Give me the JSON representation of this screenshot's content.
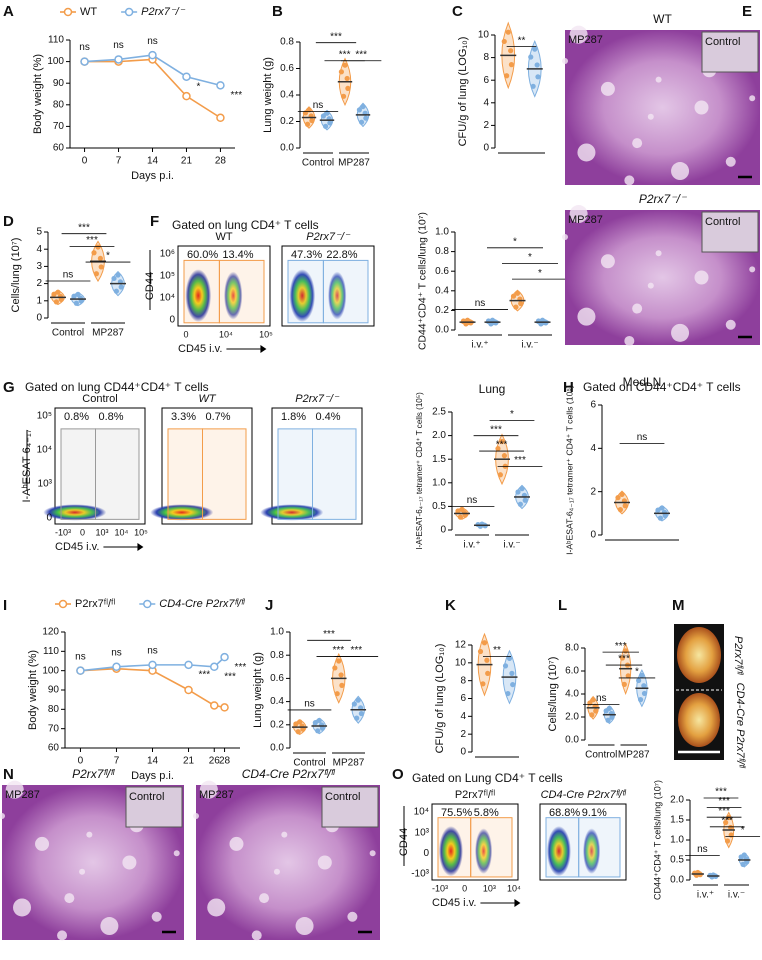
{
  "panels": [
    "A",
    "B",
    "C",
    "D",
    "E",
    "F",
    "G",
    "H",
    "I",
    "J",
    "K",
    "L",
    "M",
    "N",
    "O"
  ],
  "headings": [
    "Gated on lung CD4⁺ T cells",
    "Gated on lung CD44⁺CD4⁺ T cells",
    "Gated on CD44⁺CD4⁺ T cells",
    "Gated on Lung CD4⁺ T cells"
  ],
  "chart_data": [
    {
      "type": "line",
      "ylabel": "Body weight (%)",
      "xlabel": "Days p.i.",
      "x": [
        0,
        7,
        14,
        21,
        28
      ],
      "xlim": [
        -3,
        31
      ],
      "xticks": [
        0,
        7,
        14,
        21,
        28
      ],
      "ylim": [
        60,
        110
      ],
      "yticks": [
        60,
        70,
        80,
        90,
        100,
        110
      ],
      "series": [
        {
          "name": "WT",
          "color": "#f39c4a",
          "values": [
            100,
            100,
            101,
            84,
            74
          ]
        },
        {
          "name": "P2rx7⁻/⁻",
          "color": "#7fb0e0",
          "values": [
            100,
            101,
            103,
            93,
            89
          ]
        }
      ],
      "annotations": [
        "ns",
        "ns",
        "ns",
        "*",
        "***"
      ]
    },
    {
      "type": "dot",
      "ylabel": "Lung weight (g)",
      "categories": [
        "Control",
        "MP287"
      ],
      "ylim": [
        0,
        0.8
      ],
      "yticks": [
        {
          "value": 0,
          "label": "0.0"
        },
        0.2,
        0.4,
        0.6,
        0.8
      ],
      "series": [
        {
          "color": "#f39c4a",
          "values": [
            0.23,
            0.5
          ]
        },
        {
          "color": "#7fb0e0",
          "values": [
            0.21,
            0.25
          ]
        }
      ],
      "annotations": [
        "ns",
        "***",
        "***",
        "***"
      ]
    },
    {
      "type": "dot",
      "ylabel": "CFU/g of lung (LOG₁₀)",
      "categories": [
        null
      ],
      "ylim": [
        0,
        10
      ],
      "yticks": [
        0,
        2,
        4,
        6,
        8,
        10
      ],
      "series": [
        {
          "color": "#f39c4a",
          "values": [
            8.2
          ]
        },
        {
          "color": "#7fb0e0",
          "values": [
            7.0
          ]
        }
      ],
      "annotations": [
        "**"
      ]
    },
    {
      "type": "dot",
      "ylabel": "Cells/lung (10⁷)",
      "categories": [
        "Control",
        "MP287"
      ],
      "ylim": [
        0,
        5
      ],
      "yticks": [
        0,
        1,
        2,
        3,
        4,
        5
      ],
      "series": [
        {
          "color": "#f39c4a",
          "values": [
            1.2,
            3.3
          ]
        },
        {
          "color": "#7fb0e0",
          "values": [
            1.1,
            2.0
          ]
        }
      ],
      "annotations": [
        "***",
        "***",
        "ns",
        "*"
      ]
    },
    {
      "type": "dot",
      "ylabel": "CD44⁺CD4⁺ T cells/lung (10⁷)",
      "categories": [
        "i.v.⁺",
        "i.v.⁻"
      ],
      "ylim": [
        0,
        1
      ],
      "yticks": [
        {
          "value": 0,
          "label": "0.0"
        },
        0.2,
        0.4,
        0.6,
        0.8,
        {
          "value": 1,
          "label": "1.0"
        }
      ],
      "series": [
        {
          "color": "#f39c4a",
          "values": [
            0.08,
            0.3
          ]
        },
        {
          "color": "#7fb0e0",
          "values": [
            0.08,
            0.08
          ]
        }
      ],
      "annotations": [
        "*",
        "*",
        "*",
        "ns"
      ]
    },
    {
      "type": "dot",
      "title": "Lung",
      "ylabel": "I-AᵇESAT-6₄₋₁₇ tetramer⁺ CD4⁺ T cells (10⁵)",
      "categories": [
        "i.v.⁺",
        "i.v.⁻"
      ],
      "ylim": [
        0,
        2.5
      ],
      "yticks": [
        0,
        0.5,
        {
          "value": 1,
          "label": "1.0"
        },
        1.5,
        {
          "value": 2,
          "label": "2.0"
        },
        2.5
      ],
      "series": [
        {
          "color": "#f39c4a",
          "values": [
            0.35,
            1.5
          ]
        },
        {
          "color": "#7fb0e0",
          "values": [
            0.1,
            0.7
          ]
        }
      ],
      "annotations": [
        "*",
        "***",
        "***",
        "***",
        "ns"
      ]
    },
    {
      "type": "dot",
      "title": "MedLN",
      "ylabel": "I-AᵇESAT-6₄₋₁₇ tetramer⁺ CD4⁺ T cells (10⁵)",
      "categories": [
        null
      ],
      "ylim": [
        0,
        6
      ],
      "yticks": [
        0,
        2,
        4,
        6
      ],
      "series": [
        {
          "color": "#f39c4a",
          "values": [
            1.5
          ]
        },
        {
          "color": "#7fb0e0",
          "values": [
            1.0
          ]
        }
      ],
      "annotations": [
        "ns"
      ]
    },
    {
      "type": "line",
      "ylabel": "Body weight (%)",
      "xlabel": "Days p.i.",
      "x": [
        0,
        7,
        14,
        21,
        26,
        28
      ],
      "xlim": [
        -3,
        31
      ],
      "xticks": [
        0,
        7,
        14,
        21,
        26,
        28
      ],
      "ylim": [
        60,
        120
      ],
      "yticks": [
        60,
        70,
        80,
        90,
        100,
        110,
        120
      ],
      "series": [
        {
          "name": "P2rx7ᶠˡ/ᶠˡ",
          "color": "#f39c4a",
          "values": [
            100,
            101,
            100,
            90,
            82,
            81
          ]
        },
        {
          "name": "CD4-Cre P2rx7ᶠˡ/ᶠˡ",
          "color": "#7fb0e0",
          "values": [
            100,
            102,
            103,
            103,
            102,
            107
          ]
        }
      ],
      "annotations": [
        "ns",
        "ns",
        "ns",
        "***",
        "***",
        "***"
      ]
    },
    {
      "type": "dot",
      "ylabel": "Lung weight (g)",
      "categories": [
        "Control",
        "MP287"
      ],
      "ylim": [
        0,
        1
      ],
      "yticks": [
        {
          "value": 0,
          "label": "0.0"
        },
        0.2,
        0.4,
        0.6,
        0.8,
        {
          "value": 1,
          "label": "1.0"
        }
      ],
      "series": [
        {
          "color": "#f39c4a",
          "values": [
            0.18,
            0.6
          ]
        },
        {
          "color": "#7fb0e0",
          "values": [
            0.19,
            0.33
          ]
        }
      ],
      "annotations": [
        "***",
        "***",
        "***",
        "ns"
      ]
    },
    {
      "type": "dot",
      "ylabel": "CFU/g of lung (LOG₁₀)",
      "categories": [
        null
      ],
      "ylim": [
        0,
        12
      ],
      "yticks": [
        0,
        2,
        4,
        6,
        8,
        10,
        12
      ],
      "series": [
        {
          "color": "#f39c4a",
          "values": [
            9.8
          ]
        },
        {
          "color": "#7fb0e0",
          "values": [
            8.4
          ]
        }
      ],
      "annotations": [
        "**"
      ]
    },
    {
      "type": "dot",
      "ylabel": "Cells/lung (10⁷)",
      "categories": [
        "Control",
        "MP287"
      ],
      "ylim": [
        0,
        8
      ],
      "yticks": [
        {
          "value": 0,
          "label": "0.0"
        },
        {
          "value": 2,
          "label": "2.0"
        },
        {
          "value": 4,
          "label": "4.0"
        },
        {
          "value": 6,
          "label": "6.0"
        },
        {
          "value": 8,
          "label": "8.0"
        }
      ],
      "series": [
        {
          "color": "#f39c4a",
          "values": [
            2.8,
            6.2
          ]
        },
        {
          "color": "#7fb0e0",
          "values": [
            2.2,
            4.5
          ]
        }
      ],
      "annotations": [
        "***",
        "***",
        "*",
        "ns"
      ]
    },
    {
      "type": "dot",
      "ylabel": "CD44⁺CD4⁺ T cells/lung (10⁷)",
      "categories": [
        "i.v.⁺",
        "i.v.⁻"
      ],
      "ylim": [
        0,
        2
      ],
      "yticks": [
        {
          "value": 0,
          "label": "0.0"
        },
        0.5,
        {
          "value": 1,
          "label": "1.0"
        },
        1.5,
        {
          "value": 2,
          "label": "2.0"
        }
      ],
      "series": [
        {
          "color": "#f39c4a",
          "values": [
            0.15,
            1.25
          ]
        },
        {
          "color": "#7fb0e0",
          "values": [
            0.1,
            0.5
          ]
        }
      ],
      "annotations": [
        "***",
        "***",
        "***",
        "***",
        "*",
        "ns"
      ]
    }
  ],
  "flow": [
    {
      "y_axis": "CD44",
      "x_axis": "CD45 i.v.",
      "yticks": [
        "10⁶",
        "10⁵",
        "10⁴",
        "0"
      ],
      "xticks": [
        "0",
        "10⁴",
        "10⁵"
      ],
      "plots": [
        {
          "title": "WT",
          "color": "#f39c4a",
          "left": "60.0%",
          "right": "13.4%"
        },
        {
          "title": "P2rx7⁻/⁻",
          "color": "#7fb0e0",
          "left": "47.3%",
          "right": "22.8%"
        }
      ]
    },
    {
      "y_axis": "I-AᵇESAT-6₄₋₁₇",
      "x_axis": "CD45 i.v.",
      "yticks": [
        "10⁵",
        "10⁴",
        "10³",
        "0"
      ],
      "xticks": [
        "-10³",
        "0",
        "10³",
        "10⁴",
        "10⁵"
      ],
      "plots": [
        {
          "title": "Control",
          "color": "#999999",
          "left": "0.8%",
          "right": "0.8%"
        },
        {
          "title": "WT",
          "color": "#f39c4a",
          "left": "3.3%",
          "right": "0.7%"
        },
        {
          "title": "P2rx7⁻/⁻",
          "color": "#7fb0e0",
          "left": "1.8%",
          "right": "0.4%"
        }
      ]
    },
    {
      "y_axis": "CD44",
      "x_axis": "CD45 i.v.",
      "yticks": [
        "10⁴",
        "10³",
        "0",
        "-10³"
      ],
      "xticks": [
        "-10³",
        "0",
        "10³",
        "10⁴"
      ],
      "plots": [
        {
          "title": "P2rx7ᶠˡ/ᶠˡ",
          "color": "#f39c4a",
          "left": "75.5%",
          "right": "5.8%"
        },
        {
          "title": "CD4-Cre P2rx7ᶠˡ/ᶠˡ",
          "color": "#7fb0e0",
          "left": "68.8%",
          "right": "9.1%"
        }
      ]
    }
  ],
  "histology": [
    {
      "title": "WT",
      "tag": "MP287",
      "inset": "Control"
    },
    {
      "title": "P2rx7⁻/⁻",
      "tag": "MP287",
      "inset": "Control"
    },
    {
      "title": "P2rx7ᶠˡ/ᶠˡ",
      "tag": "MP287",
      "inset": "Control"
    },
    {
      "title": "CD4-Cre P2rx7ᶠˡ/ᶠˡ",
      "tag": "MP287",
      "inset": "Control"
    }
  ],
  "lungs": [
    "P2rx7ᶠˡ/ᶠˡ",
    "CD4-Cre P2rx7ᶠˡ/ᶠˡ"
  ]
}
